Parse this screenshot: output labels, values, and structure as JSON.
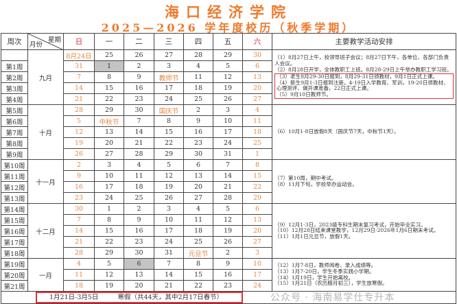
{
  "title": "海口经济学院",
  "subtitle": "2025—2026 学年度校历（秋季学期）",
  "header": {
    "week": "周次",
    "weekday": "星期",
    "month": "月份",
    "days": [
      "日",
      "一",
      "二",
      "三",
      "四",
      "五",
      "六"
    ],
    "activities": "主要教学活动安排"
  },
  "groups": [
    {
      "month": "九月",
      "rows": [
        {
          "week": "",
          "days": [
            "8月24日",
            "25",
            "26",
            "27",
            "28",
            "29",
            "30"
          ]
        },
        {
          "week": "第1周",
          "days": [
            "31",
            "1",
            "2",
            "3",
            "4",
            "5",
            "6"
          ],
          "gray": 1
        },
        {
          "week": "第2周",
          "days": [
            "7",
            "8",
            "9",
            "教师节",
            "11",
            "12",
            "13"
          ],
          "hol": 3
        },
        {
          "week": "第3周",
          "days": [
            "14",
            "15",
            "16",
            "17",
            "18",
            "19",
            "20"
          ]
        },
        {
          "week": "第4周",
          "days": [
            "21",
            "22",
            "23",
            "24",
            "25",
            "26",
            "27"
          ]
        }
      ],
      "notes": [
        "（1）8月27日上午，校领导班子会议；8月27日下午，各单位、各部门负责人会议。",
        "（2）8月28日开学，全体教职工上班。8月28-29日上午举办教职工学习班。"
      ],
      "boxed_notes": [
        "（3）老生8月29-30日报到，8月29-31日领教材，9月1日正式上课。",
        "（4）新生9月1-3日报到注册，4-19日入学教育、军训，19-20日领教材、心理测评、做开课准备，22日正式上课。",
        "（5）9月10日教师节。"
      ]
    },
    {
      "month": "十月",
      "rows": [
        {
          "week": "第5周",
          "days": [
            "28",
            "29",
            "30",
            "国庆节",
            "2",
            "3",
            "4"
          ],
          "hol": 3
        },
        {
          "week": "第6周",
          "days": [
            "5",
            "中秋节",
            "7",
            "8",
            "9",
            "10",
            "11"
          ],
          "hol": 1
        },
        {
          "week": "第7周",
          "days": [
            "12",
            "13",
            "14",
            "15",
            "16",
            "17",
            "18"
          ]
        },
        {
          "week": "第8周",
          "days": [
            "19",
            "20",
            "21",
            "22",
            "23",
            "24",
            "25"
          ]
        },
        {
          "week": "第9周",
          "days": [
            "26",
            "27",
            "28",
            "29",
            "30",
            "31",
            "1"
          ]
        }
      ],
      "notes": [
        "（6）10月1-8日放假8天（国庆节7天，中秋节1天）。"
      ]
    },
    {
      "month": "十一月",
      "rows": [
        {
          "week": "第10周",
          "days": [
            "2",
            "3",
            "4",
            "5",
            "6",
            "7",
            "8"
          ]
        },
        {
          "week": "第11周",
          "days": [
            "9",
            "10",
            "11",
            "12",
            "13",
            "14",
            "15"
          ]
        },
        {
          "week": "第12周",
          "days": [
            "16",
            "17",
            "18",
            "19",
            "20",
            "21",
            "22"
          ]
        },
        {
          "week": "第13周",
          "days": [
            "23",
            "24",
            "25",
            "26",
            "27",
            "28",
            "29"
          ]
        }
      ],
      "notes": [
        "（7）第10周，期中考试。",
        "（8）11月下旬，学校举办运动会。"
      ]
    },
    {
      "month": "十二月",
      "rows": [
        {
          "week": "第14周",
          "days": [
            "30",
            "1",
            "2",
            "3",
            "4",
            "5",
            "6"
          ]
        },
        {
          "week": "第15周",
          "days": [
            "7",
            "8",
            "9",
            "10",
            "11",
            "12",
            "13"
          ]
        },
        {
          "week": "第16周",
          "days": [
            "14",
            "15",
            "16",
            "17",
            "18",
            "19",
            "20"
          ]
        },
        {
          "week": "第17周",
          "days": [
            "21",
            "22",
            "23",
            "24",
            "25",
            "26",
            "27"
          ]
        },
        {
          "week": "第18周",
          "days": [
            "28",
            "29",
            "30",
            "31",
            "元旦节",
            "2",
            "3"
          ],
          "hol": 4
        }
      ],
      "notes": [
        "（9）12月1-3日，2023级专科生期末复习考试，开始毕业实习。",
        "（10）12月28日结束课堂教学，12月29日-2026年1月6日期末考试。",
        "（11）1月1日元旦节，放假1天。"
      ]
    },
    {
      "month": "一月",
      "rows": [
        {
          "week": "第19周",
          "days": [
            "4",
            "5",
            "6",
            "7",
            "8",
            "9",
            "10"
          ],
          "gray": 2
        },
        {
          "week": "第20周",
          "days": [
            "11",
            "12",
            "13",
            "14",
            "15",
            "16",
            "17"
          ]
        },
        {
          "week": "第21周",
          "days": [
            "18",
            "19",
            "20",
            "21",
            "22",
            "23",
            "24"
          ]
        }
      ],
      "notes": [
        "（12）1月7-8日，教师阅卷、录入成绩等。",
        "（13）1月7-20日，学生冬季实践小学期。",
        "（14）1月19日，学生开始离校。",
        "（15）1月21日（农历腊月初三），学生放寒假。"
      ]
    }
  ],
  "footer": {
    "dates": "1月21日-3月5日",
    "label": "寒假（共44天，其中2月17日春节）"
  },
  "watermark": "公众号 · 海南易学仕专升本",
  "colors": {
    "title": "#ef7a2a",
    "weekend": "#e8833a",
    "highlight_box": "#e0303a",
    "gray_cell": "#c4c4c4"
  }
}
